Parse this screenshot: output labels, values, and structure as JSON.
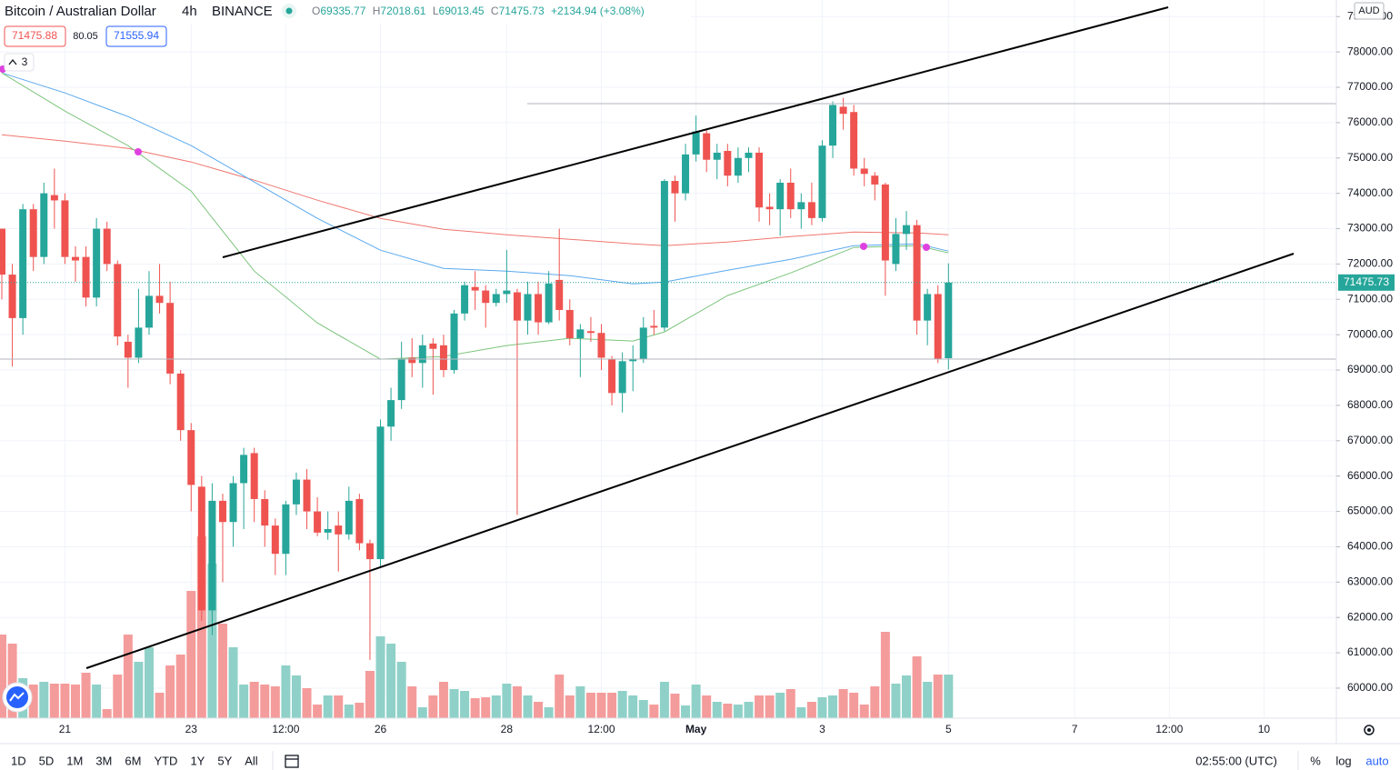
{
  "header": {
    "symbol": "Bitcoin / Australian Dollar",
    "interval": "4h",
    "exchange": "BINANCE",
    "ohlc": [
      {
        "key": "O",
        "value": "69335.77"
      },
      {
        "key": "H",
        "value": "72018.61"
      },
      {
        "key": "L",
        "value": "69013.45"
      },
      {
        "key": "C",
        "value": "71475.73"
      }
    ],
    "change": "+2134.94 (+3.08%)"
  },
  "quotes": {
    "bid": "71475.88",
    "spread": "80.05",
    "ask": "71555.94"
  },
  "indicators_count": "3",
  "currency": "AUD",
  "chart_data": {
    "type": "candlestick",
    "categories": [
      null,
      null,
      null,
      null,
      null,
      null,
      "21",
      null,
      null,
      null,
      null,
      null,
      null,
      null,
      null,
      null,
      null,
      null,
      "23",
      null,
      null,
      null,
      null,
      null,
      null,
      null,
      null,
      "12:00",
      null,
      null,
      null,
      null,
      null,
      null,
      null,
      null,
      "26",
      null,
      null,
      null,
      null,
      null,
      null,
      null,
      null,
      null,
      null,
      null,
      "28",
      null,
      null,
      null,
      null,
      null,
      null,
      null,
      null,
      "12:00",
      null,
      null,
      null,
      null,
      null,
      null,
      null,
      null,
      "May",
      null,
      null,
      null,
      null,
      null,
      null,
      null,
      null,
      null,
      null,
      null,
      "3",
      null,
      null,
      null,
      null,
      null,
      null,
      null,
      null,
      null,
      null,
      null,
      "5",
      null,
      null,
      null,
      null,
      null,
      null,
      null,
      null,
      null,
      null,
      null,
      "7",
      null,
      null,
      null,
      null,
      null,
      null,
      null,
      null,
      "12:00",
      null,
      null,
      null,
      null,
      null,
      null,
      null,
      null,
      "10"
    ],
    "open": [
      73000,
      71700,
      70470,
      73550,
      72200,
      73950,
      73800,
      72200,
      72200,
      71050,
      73000,
      72000,
      69800,
      69350,
      70200,
      71100,
      70900,
      68900,
      67300,
      65700,
      62200,
      65300,
      64700,
      65800,
      66650,
      65350,
      64600,
      63800,
      65200,
      65900,
      65000,
      64400,
      64600,
      64350,
      65350,
      64100,
      63650,
      67400,
      68150,
      69350,
      69200,
      69750,
      69700,
      69000,
      70600,
      71350,
      71250,
      70900,
      71150,
      71200,
      70400,
      71150,
      70350,
      71550,
      70700,
      69900,
      70100,
      70050,
      69300,
      68350,
      69250,
      69300,
      70250,
      70200,
      74350,
      74000,
      75100,
      75700,
      74950,
      75200,
      74500,
      75000,
      75150,
      73620,
      73550,
      74300,
      73550,
      73750,
      73300,
      75350,
      76450,
      76300,
      74700,
      74500,
      74250,
      72000,
      72850,
      73100,
      70400,
      71150,
      69335.77,
      null,
      null,
      null,
      null,
      null,
      null,
      null,
      null,
      null,
      null,
      null,
      null,
      null,
      null,
      null,
      null,
      null,
      null,
      null,
      null,
      null,
      null,
      null,
      null,
      null,
      null,
      null,
      null,
      null,
      null
    ],
    "high": [
      73000,
      72000,
      73700,
      73700,
      74300,
      74700,
      74000,
      72500,
      72500,
      73300,
      73200,
      72100,
      70000,
      71300,
      71800,
      72000,
      71500,
      69000,
      67500,
      66000,
      65800,
      65500,
      66000,
      66800,
      66800,
      65600,
      64800,
      65300,
      66100,
      66200,
      65400,
      65000,
      65000,
      65700,
      65500,
      64200,
      67600,
      68500,
      69800,
      69900,
      70000,
      69900,
      70000,
      70700,
      71500,
      71800,
      71400,
      71300,
      72400,
      71300,
      71500,
      71500,
      71800,
      73000,
      71000,
      70300,
      70500,
      70300,
      69400,
      69500,
      69700,
      70500,
      70700,
      74400,
      74500,
      75400,
      76200,
      75800,
      75400,
      75400,
      75300,
      75300,
      75300,
      74000,
      74400,
      74700,
      74000,
      74300,
      75500,
      76600,
      76700,
      76500,
      75000,
      74600,
      74300,
      73300,
      73500,
      73250,
      71300,
      71400,
      72018.61,
      null,
      null,
      null,
      null,
      null,
      null,
      null,
      null,
      null,
      null,
      null,
      null,
      null,
      null,
      null,
      null,
      null,
      null,
      null,
      null,
      null,
      null,
      null,
      null,
      null,
      null,
      null,
      null,
      null,
      null
    ],
    "low": [
      71000,
      69100,
      70000,
      71800,
      72000,
      73000,
      72000,
      71500,
      70800,
      70800,
      71800,
      69700,
      68500,
      69200,
      70000,
      70600,
      68600,
      67000,
      65000,
      61900,
      61500,
      63000,
      64000,
      64500,
      64700,
      64000,
      63200,
      63200,
      64900,
      64500,
      64300,
      64200,
      63300,
      64200,
      63900,
      60800,
      63400,
      67000,
      67900,
      68800,
      68500,
      68300,
      68800,
      68900,
      70400,
      70700,
      70200,
      70800,
      70900,
      64900,
      70000,
      70000,
      70300,
      70400,
      69700,
      68800,
      69800,
      69000,
      68000,
      67800,
      68400,
      69200,
      70000,
      70100,
      73200,
      73800,
      74900,
      74600,
      74400,
      74200,
      74300,
      74600,
      73200,
      73100,
      72800,
      73300,
      73000,
      73100,
      73200,
      75000,
      75800,
      74500,
      74200,
      73800,
      71100,
      71800,
      72400,
      70000,
      69700,
      69200,
      69013.45,
      null,
      null,
      null,
      null,
      null,
      null,
      null,
      null,
      null,
      null,
      null,
      null,
      null,
      null,
      null,
      null,
      null,
      null,
      null,
      null,
      null,
      null,
      null,
      null,
      null,
      null,
      null,
      null,
      null,
      null
    ],
    "close": [
      71700,
      70470,
      73550,
      72200,
      74000,
      73800,
      72200,
      72100,
      71050,
      73000,
      72000,
      69950,
      69350,
      70200,
      71100,
      70900,
      68900,
      67300,
      65750,
      62200,
      65300,
      64700,
      65800,
      66600,
      65350,
      64600,
      63800,
      65200,
      65900,
      65000,
      64400,
      64500,
      64350,
      65300,
      64100,
      63650,
      67400,
      68150,
      69300,
      69200,
      69700,
      69600,
      69000,
      70600,
      71400,
      71250,
      70900,
      71150,
      71250,
      70400,
      71150,
      70350,
      71450,
      70700,
      69900,
      70150,
      70050,
      69350,
      68350,
      69250,
      69300,
      70200,
      70200,
      74350,
      74000,
      75100,
      75750,
      74950,
      75150,
      74500,
      75000,
      75150,
      73600,
      73550,
      74300,
      73550,
      73750,
      73300,
      75350,
      76500,
      76250,
      74700,
      74550,
      74250,
      72100,
      72850,
      73100,
      70400,
      71150,
      69300,
      71475.73,
      null,
      null,
      null,
      null,
      null,
      null,
      null,
      null,
      null,
      null,
      null,
      null,
      null,
      null,
      null,
      null,
      null,
      null,
      null,
      null,
      null,
      null,
      null,
      null,
      null,
      null,
      null,
      null,
      null,
      null
    ],
    "volume": [
      92,
      82,
      44,
      37,
      40,
      38,
      38,
      37,
      50,
      37,
      10,
      48,
      92,
      62,
      78,
      28,
      58,
      70,
      140,
      200,
      170,
      104,
      78,
      37,
      40,
      37,
      35,
      58,
      47,
      33,
      15,
      25,
      25,
      15,
      17,
      52,
      90,
      82,
      62,
      35,
      12,
      25,
      40,
      32,
      30,
      22,
      23,
      25,
      38,
      35,
      25,
      18,
      12,
      48,
      25,
      35,
      28,
      28,
      28,
      30,
      25,
      20,
      15,
      40,
      27,
      14,
      37,
      25,
      18,
      16,
      15,
      18,
      25,
      25,
      28,
      32,
      12,
      18,
      23,
      25,
      32,
      28,
      15,
      35,
      95,
      38,
      47,
      68,
      40,
      48,
      48,
      null,
      null,
      null,
      null,
      null,
      null,
      null,
      null,
      null,
      null,
      null,
      null,
      null,
      null,
      null,
      null,
      null,
      null,
      null,
      null,
      null,
      null,
      null,
      null,
      null,
      null,
      null,
      null,
      null,
      null
    ],
    "up_color": "#26a69a",
    "down_color": "#ef5350",
    "volume_up_color": "#8fd1c8",
    "volume_down_color": "#f49c9b",
    "ylim": [
      59150,
      79470
    ],
    "yticks": [
      {
        "value": 60000,
        "label": "60000.00"
      },
      {
        "value": 61000,
        "label": "61000.00"
      },
      {
        "value": 62000,
        "label": "62000.00"
      },
      {
        "value": 63000,
        "label": "63000.00"
      },
      {
        "value": 64000,
        "label": "64000.00"
      },
      {
        "value": 65000,
        "label": "65000.00"
      },
      {
        "value": 66000,
        "label": "66000.00"
      },
      {
        "value": 67000,
        "label": "67000.00"
      },
      {
        "value": 68000,
        "label": "68000.00"
      },
      {
        "value": 69000,
        "label": "69000.00"
      },
      {
        "value": 70000,
        "label": "70000.00"
      },
      {
        "value": 71000,
        "label": "71000.00"
      },
      {
        "value": 72000,
        "label": "72000.00"
      },
      {
        "value": 73000,
        "label": "73000.00"
      },
      {
        "value": 74000,
        "label": "74000.00"
      },
      {
        "value": 75000,
        "label": "75000.00"
      },
      {
        "value": 76000,
        "label": "76000.00"
      },
      {
        "value": 77000,
        "label": "77000.00"
      },
      {
        "value": 78000,
        "label": "78000.00"
      },
      {
        "value": 79000,
        "label": "79000.00"
      }
    ],
    "grid": true,
    "moving_averages": [
      {
        "color": "#f0776f",
        "x": [
          0,
          6,
          12,
          18,
          24,
          30,
          36,
          42,
          48,
          54,
          60,
          63,
          69,
          75,
          81,
          87,
          90
        ],
        "values": [
          75657,
          75478,
          75272,
          74886,
          74372,
          73806,
          73292,
          72984,
          72829,
          72701,
          72572,
          72521,
          72624,
          72778,
          72906,
          72881,
          72829
        ]
      },
      {
        "color": "#5aa9ee",
        "x": [
          0,
          6,
          12,
          18,
          24,
          30,
          36,
          42,
          48,
          54,
          60,
          63,
          69,
          75,
          81,
          87,
          90
        ],
        "values": [
          77406,
          76840,
          76172,
          75349,
          74320,
          73292,
          72392,
          71878,
          71801,
          71672,
          71441,
          71492,
          71826,
          72135,
          72521,
          72572,
          72367
        ]
      },
      {
        "color": "#7cc47c",
        "x": [
          0,
          6,
          12,
          18,
          24,
          30,
          36,
          42,
          48,
          54,
          60,
          63,
          69,
          75,
          81,
          87,
          90
        ],
        "values": [
          77406,
          76326,
          75349,
          74063,
          71801,
          70335,
          69307,
          69384,
          69693,
          69898,
          69821,
          70078,
          71107,
          71749,
          72469,
          72521,
          72315
        ]
      }
    ],
    "last_price_label": "71475.73"
  },
  "toolbar": {
    "ranges": [
      "1D",
      "5D",
      "1M",
      "3M",
      "6M",
      "YTD",
      "1Y",
      "5Y",
      "All"
    ],
    "time": "02:55:00 (UTC)",
    "options": [
      "%",
      "log",
      "auto"
    ]
  }
}
